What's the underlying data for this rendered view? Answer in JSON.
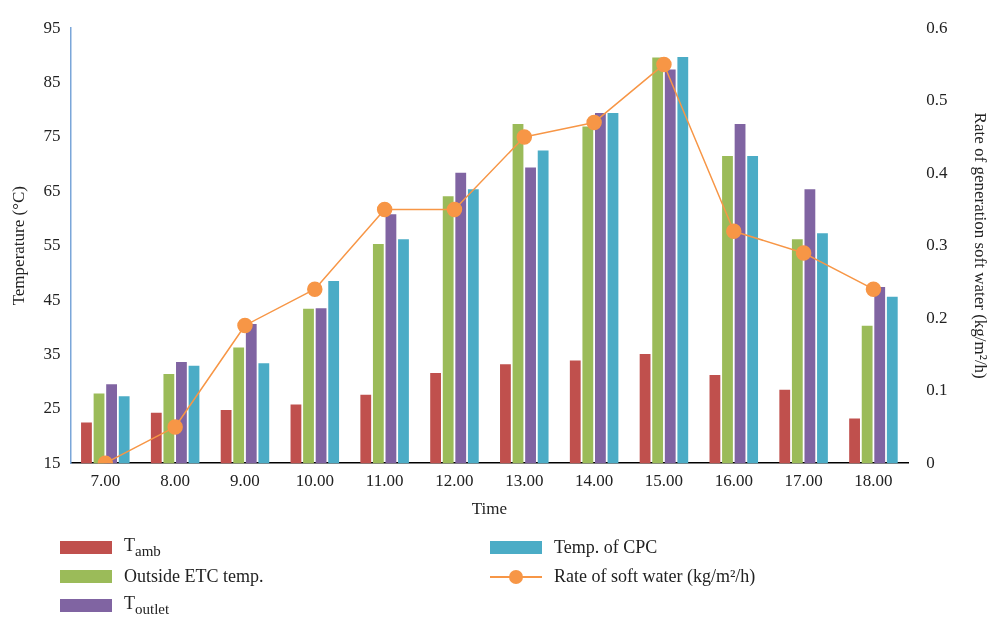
{
  "chart_data": {
    "type": "bar",
    "xlabel": "Time",
    "ylabel": "Temperature (°C)",
    "y2label": "Rate of generation soft water (kg/m²/h)",
    "categories": [
      "7.00",
      "8.00",
      "9.00",
      "10.00",
      "11.00",
      "12.00",
      "13.00",
      "14.00",
      "15.00",
      "16.00",
      "17.00",
      "18.00"
    ],
    "series": [
      {
        "name": "T$_{amb}$",
        "color": "#c0504d",
        "values": [
          22.5,
          24.3,
          24.8,
          25.8,
          27.6,
          31.6,
          33.2,
          33.9,
          35.1,
          31.2,
          28.5,
          23.2
        ]
      },
      {
        "name": "Outside ETC temp.",
        "color": "#9bbb59",
        "values": [
          27.8,
          31.4,
          36.3,
          43.4,
          55.3,
          64.1,
          77.4,
          76.9,
          89.6,
          71.5,
          56.2,
          40.3
        ]
      },
      {
        "name": "T$_{outlet}$",
        "color": "#8064a2",
        "values": [
          29.5,
          33.6,
          40.6,
          43.5,
          60.8,
          68.4,
          69.4,
          79.4,
          87.4,
          77.4,
          65.4,
          47.4
        ]
      },
      {
        "name": "Temp. of CPC",
        "color": "#4bacc6",
        "values": [
          27.3,
          32.9,
          33.4,
          48.5,
          56.2,
          65.4,
          72.5,
          79.4,
          89.7,
          71.5,
          57.3,
          45.6
        ]
      },
      {
        "name": "Rate of soft water (kg/m²/h)",
        "color": "#f79646",
        "type": "line",
        "axis": "y2",
        "values": [
          0,
          0.05,
          0.19,
          0.24,
          0.35,
          0.35,
          0.45,
          0.47,
          0.55,
          0.32,
          0.29,
          0.24
        ]
      }
    ],
    "ylim": [
      15,
      95
    ],
    "yticks": [
      15,
      25,
      35,
      45,
      55,
      65,
      75,
      85,
      95
    ],
    "y2lim": [
      0,
      0.6
    ],
    "y2ticks": [
      0,
      0.1,
      0.2,
      0.3,
      0.4,
      0.5,
      0.6
    ],
    "grid": false,
    "legend": "bottom",
    "marker": "circle",
    "line_style": "solid"
  }
}
